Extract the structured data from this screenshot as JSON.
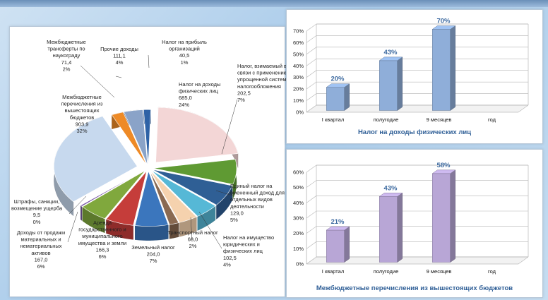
{
  "chart_data": [
    {
      "type": "pie",
      "title": "",
      "slices": [
        {
          "label": [
            "Налог на доходы",
            "физических лиц"
          ],
          "value": "685,0",
          "pct": "24%",
          "v": 24,
          "color": "#f3d6d6"
        },
        {
          "label": [],
          "value": "",
          "pct": "",
          "v": 8,
          "color": "#5f9a33"
        },
        {
          "label": [
            "Налог, взимаемый в",
            "связи с применением",
            "упрощенной системы",
            "налогообложения"
          ],
          "value": "202,5",
          "pct": "7%",
          "v": 7,
          "color": "#2f5f95"
        },
        {
          "label": [
            "Единый налог на",
            "вмененный доход для",
            "отдельных видов",
            "деятельности"
          ],
          "value": "129,0",
          "pct": "5%",
          "v": 5,
          "color": "#56b8d6"
        },
        {
          "label": [
            "Налог на имущество",
            "юридических и",
            "физических лиц"
          ],
          "value": "102,5",
          "pct": "4%",
          "v": 4,
          "color": "#f5d2ae"
        },
        {
          "label": [
            "Транспортный налог"
          ],
          "value": "68,0",
          "pct": "2%",
          "v": 2,
          "color": "#8a6a52"
        },
        {
          "label": [
            "Земельный налог"
          ],
          "value": "204,0",
          "pct": "7%",
          "v": 7,
          "color": "#3b76bd"
        },
        {
          "label": [
            "Аренда",
            "государственного и",
            "муниципального",
            "имущества и земли"
          ],
          "value": "166,3",
          "pct": "6%",
          "v": 6,
          "color": "#c53d3a"
        },
        {
          "label": [
            "Доходы от продажи",
            "материальных и",
            "нематериальных",
            "активов"
          ],
          "value": "167,0",
          "pct": "6%",
          "v": 6,
          "color": "#80a83d"
        },
        {
          "label": [
            "Штрафы, санкции,",
            "возмещение ущерба"
          ],
          "value": "9,5",
          "pct": "0%",
          "v": 0.4,
          "color": "#7655a3"
        },
        {
          "label": [
            "Межбюджетные",
            "перечисления из",
            "вышестоящих",
            "бюджетов"
          ],
          "value": "903,9",
          "pct": "32%",
          "v": 32,
          "color": "#c7d9ee"
        },
        {
          "label": [
            "Межбюджетные",
            "трансферты по",
            "наукограду"
          ],
          "value": "71,4",
          "pct": "2%",
          "v": 2.5,
          "color": "#ee8a26"
        },
        {
          "label": [
            "Прочие доходы"
          ],
          "value": "111,1",
          "pct": "4%",
          "v": 4,
          "color": "#8aa3c8"
        },
        {
          "label": [
            "Налог на прибыль",
            "организаций"
          ],
          "value": "40,5",
          "pct": "1%",
          "v": 1.5,
          "color": "#2e62a6"
        }
      ]
    },
    {
      "type": "bar",
      "title": "Налог на доходы физических лиц",
      "categories": [
        "I квартал",
        "полугодие",
        "9 месяцев",
        "год"
      ],
      "values": [
        20,
        43,
        70,
        null
      ],
      "value_labels": [
        "20%",
        "43%",
        "70%",
        ""
      ],
      "yticks": [
        "0%",
        "10%",
        "20%",
        "30%",
        "40%",
        "50%",
        "60%",
        "70%"
      ],
      "ylim": [
        0,
        70
      ],
      "color": "#8faed9"
    },
    {
      "type": "bar",
      "title": "Межбюджетные перечисления из вышестоящих бюджетов",
      "categories": [
        "I квартал",
        "полугодие",
        "9 месяцев",
        "год"
      ],
      "values": [
        21,
        43,
        58,
        null
      ],
      "value_labels": [
        "21%",
        "43%",
        "58%",
        ""
      ],
      "yticks": [
        "0%",
        "10%",
        "20%",
        "30%",
        "40%",
        "50%",
        "60%"
      ],
      "ylim": [
        0,
        60
      ],
      "color": "#b8a6d6"
    }
  ]
}
